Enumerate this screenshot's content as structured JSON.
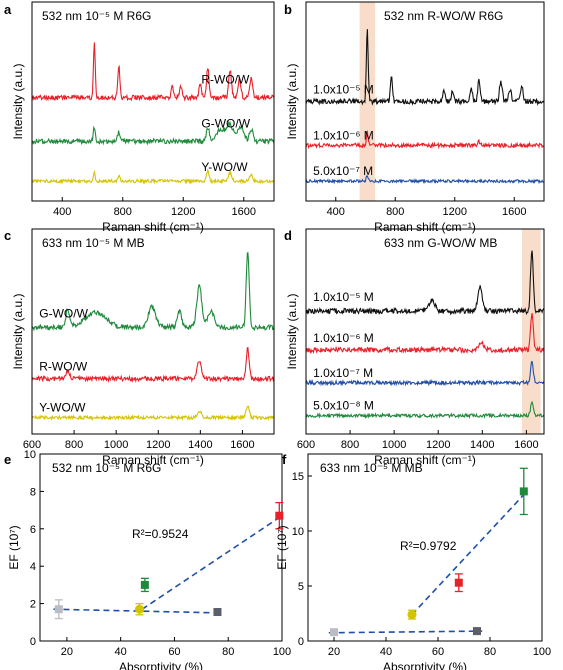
{
  "chart_data": [
    {
      "id": "a",
      "type": "line",
      "panel_label": "a",
      "title": "532 nm 10⁻⁵ M R6G",
      "xlabel": "Raman shift (cm⁻¹)",
      "ylabel": "Intensity (a.u.)",
      "xlim": [
        200,
        1800
      ],
      "xticks": [
        400,
        800,
        1200,
        1600
      ],
      "ylim": [
        0,
        1
      ],
      "series": [
        {
          "name": "R-WO/W",
          "color": "#e8202a",
          "baseline": 0.52,
          "noise": 0.012,
          "peaks": [
            [
              612,
              0.28,
              6
            ],
            [
              774,
              0.16,
              7
            ],
            [
              1128,
              0.05,
              8
            ],
            [
              1185,
              0.06,
              8
            ],
            [
              1312,
              0.07,
              8
            ],
            [
              1362,
              0.15,
              8
            ],
            [
              1510,
              0.14,
              9
            ],
            [
              1572,
              0.09,
              9
            ],
            [
              1650,
              0.1,
              9
            ]
          ]
        },
        {
          "name": "G-WO/W",
          "color": "#1f8a3c",
          "baseline": 0.3,
          "noise": 0.012,
          "peaks": [
            [
              612,
              0.07,
              6
            ],
            [
              774,
              0.05,
              7
            ],
            [
              1362,
              0.07,
              10
            ],
            [
              1450,
              0.06,
              30
            ],
            [
              1510,
              0.08,
              20
            ],
            [
              1580,
              0.07,
              20
            ],
            [
              1650,
              0.06,
              12
            ]
          ]
        },
        {
          "name": "Y-WO/W",
          "color": "#d4c400",
          "baseline": 0.1,
          "noise": 0.008,
          "peaks": [
            [
              612,
              0.04,
              6
            ],
            [
              774,
              0.03,
              7
            ],
            [
              1362,
              0.05,
              8
            ],
            [
              1510,
              0.04,
              10
            ],
            [
              1650,
              0.03,
              10
            ]
          ]
        }
      ]
    },
    {
      "id": "b",
      "type": "line",
      "panel_label": "b",
      "title": "532 nm R-WO/W R6G",
      "xlabel": "Raman shift (cm⁻¹)",
      "ylabel": "Intensity (a.u.)",
      "xlim": [
        200,
        1800
      ],
      "xticks": [
        400,
        800,
        1200,
        1600
      ],
      "ylim": [
        0,
        1
      ],
      "highlight": [
        560,
        665
      ],
      "series": [
        {
          "name": "1.0x10⁻⁵ M",
          "color": "#111111",
          "baseline": 0.5,
          "noise": 0.013,
          "peaks": [
            [
              612,
              0.36,
              6
            ],
            [
              774,
              0.12,
              7
            ],
            [
              1128,
              0.05,
              8
            ],
            [
              1185,
              0.05,
              8
            ],
            [
              1312,
              0.06,
              8
            ],
            [
              1362,
              0.1,
              8
            ],
            [
              1510,
              0.1,
              9
            ],
            [
              1572,
              0.06,
              9
            ],
            [
              1650,
              0.08,
              9
            ]
          ]
        },
        {
          "name": "1.0x10⁻⁶ M",
          "color": "#e8202a",
          "baseline": 0.28,
          "noise": 0.01,
          "peaks": [
            [
              612,
              0.07,
              6
            ],
            [
              1362,
              0.02,
              8
            ]
          ]
        },
        {
          "name": "5.0x10⁻⁷ M",
          "color": "#1f4fa8",
          "baseline": 0.1,
          "noise": 0.007,
          "peaks": [
            [
              612,
              0.03,
              6
            ]
          ]
        }
      ]
    },
    {
      "id": "c",
      "type": "line",
      "panel_label": "c",
      "title": "633 nm 10⁻⁵ M MB",
      "xlabel": "Raman shift (cm⁻¹)",
      "ylabel": "Intensity (a.u.)",
      "xlim": [
        600,
        1750
      ],
      "xticks": [
        600,
        800,
        1000,
        1200,
        1400,
        1600
      ],
      "ylim": [
        0,
        1
      ],
      "series": [
        {
          "name": "G-WO/W",
          "color": "#1f8a3c",
          "baseline": 0.52,
          "noise": 0.012,
          "peaks": [
            [
              770,
              0.08,
              10
            ],
            [
              900,
              0.07,
              50
            ],
            [
              1170,
              0.1,
              18
            ],
            [
              1300,
              0.08,
              10
            ],
            [
              1395,
              0.2,
              12
            ],
            [
              1450,
              0.08,
              15
            ],
            [
              1625,
              0.38,
              7
            ]
          ]
        },
        {
          "name": "R-WO/W",
          "color": "#e8202a",
          "baseline": 0.27,
          "noise": 0.011,
          "peaks": [
            [
              770,
              0.04,
              8
            ],
            [
              1395,
              0.09,
              10
            ],
            [
              1625,
              0.15,
              7
            ]
          ]
        },
        {
          "name": "Y-WO/W",
          "color": "#d4c400",
          "baseline": 0.08,
          "noise": 0.008,
          "peaks": [
            [
              1395,
              0.03,
              10
            ],
            [
              1625,
              0.06,
              7
            ]
          ]
        }
      ]
    },
    {
      "id": "d",
      "type": "line",
      "panel_label": "d",
      "title": "633 nm G-WO/W MB",
      "xlabel": "Raman shift (cm⁻¹)",
      "ylabel": "Intensity (a.u.)",
      "xlim": [
        600,
        1680
      ],
      "xticks": [
        600,
        800,
        1000,
        1200,
        1400,
        1600
      ],
      "ylim": [
        0,
        1
      ],
      "highlight": [
        1580,
        1665
      ],
      "series": [
        {
          "name": "1.0x10⁻⁵ M",
          "color": "#111111",
          "baseline": 0.6,
          "noise": 0.013,
          "peaks": [
            [
              1170,
              0.05,
              15
            ],
            [
              1390,
              0.12,
              10
            ],
            [
              1625,
              0.3,
              6
            ]
          ]
        },
        {
          "name": "1.0x10⁻⁶ M",
          "color": "#e8202a",
          "baseline": 0.41,
          "noise": 0.012,
          "peaks": [
            [
              1395,
              0.04,
              10
            ],
            [
              1625,
              0.18,
              6
            ]
          ]
        },
        {
          "name": "1.0x10⁻⁷ M",
          "color": "#1f4fa8",
          "baseline": 0.25,
          "noise": 0.009,
          "peaks": [
            [
              1625,
              0.1,
              6
            ]
          ]
        },
        {
          "name": "5.0x10⁻⁸ M",
          "color": "#1f8a3c",
          "baseline": 0.09,
          "noise": 0.008,
          "peaks": [
            [
              1625,
              0.06,
              6
            ]
          ]
        }
      ]
    },
    {
      "id": "e",
      "type": "scatter",
      "panel_label": "e",
      "title": "532 nm 10⁻⁵ M R6G",
      "xlabel": "Absorptivity (%)",
      "ylabel": "EF (10⁷)",
      "xlim": [
        10,
        100
      ],
      "xticks": [
        20,
        40,
        60,
        80,
        100
      ],
      "ylim": [
        0,
        10
      ],
      "yticks": [
        0,
        2,
        4,
        6,
        8,
        10
      ],
      "annotation": "R²=0.9524",
      "points": [
        {
          "x": 17,
          "y": 1.7,
          "err": 0.5,
          "color": "#b9bcc4",
          "marker": "square"
        },
        {
          "x": 47,
          "y": 1.7,
          "err": 0.3,
          "color": "#d4c400",
          "marker": "circle"
        },
        {
          "x": 49,
          "y": 3.0,
          "err": 0.35,
          "color": "#1f8a3c",
          "marker": "square"
        },
        {
          "x": 76,
          "y": 1.55,
          "err": 0.1,
          "color": "#5b5f6b",
          "marker": "square"
        },
        {
          "x": 99,
          "y": 6.7,
          "err": 0.7,
          "color": "#e8202a",
          "marker": "square"
        }
      ],
      "fits": [
        {
          "x": [
            15,
            78
          ],
          "y": [
            1.7,
            1.5
          ]
        },
        {
          "x": [
            48,
            100
          ],
          "y": [
            1.7,
            6.7
          ]
        }
      ]
    },
    {
      "id": "f",
      "type": "scatter",
      "panel_label": "f",
      "title": "633 nm 10⁻⁵ M MB",
      "xlabel": "Absorptivity (%)",
      "ylabel": "EF (10⁷)",
      "xlim": [
        10,
        100
      ],
      "xticks": [
        20,
        40,
        60,
        80,
        100
      ],
      "ylim": [
        0,
        17
      ],
      "yticks": [
        0,
        5,
        10,
        15
      ],
      "annotation": "R²=0.9792",
      "points": [
        {
          "x": 20,
          "y": 0.8,
          "err": 0.15,
          "color": "#b9bcc4",
          "marker": "square"
        },
        {
          "x": 50,
          "y": 2.4,
          "err": 0.4,
          "color": "#d4c400",
          "marker": "circle"
        },
        {
          "x": 68,
          "y": 5.3,
          "err": 0.8,
          "color": "#e8202a",
          "marker": "square"
        },
        {
          "x": 75,
          "y": 0.9,
          "err": 0.15,
          "color": "#5b5f6b",
          "marker": "square"
        },
        {
          "x": 93,
          "y": 13.6,
          "err": 2.1,
          "color": "#1f8a3c",
          "marker": "square"
        }
      ],
      "fits": [
        {
          "x": [
            18,
            77
          ],
          "y": [
            0.75,
            0.9
          ]
        },
        {
          "x": [
            50,
            93
          ],
          "y": [
            2.4,
            13.3
          ]
        }
      ]
    }
  ]
}
